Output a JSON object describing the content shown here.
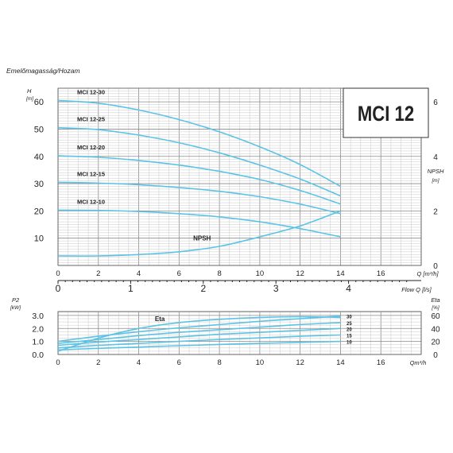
{
  "header": {
    "caption": "Emelőmagasság/Hozam"
  },
  "title_box": {
    "title": "MCI 12"
  },
  "colors": {
    "curve": "#5bc3e6",
    "grid_minor": "#c9c9c9",
    "grid_major": "#8a8a8a",
    "text": "#222222"
  },
  "chart_data": [
    {
      "id": "head",
      "type": "line",
      "x_label": "Q [m³/h]",
      "xlim": [
        0,
        18
      ],
      "x_ticks": [
        0,
        2,
        4,
        6,
        8,
        10,
        12,
        14,
        16
      ],
      "y_label": "H [m]",
      "ylim": [
        0,
        65
      ],
      "y_ticks": [
        10,
        20,
        30,
        40,
        50,
        60
      ],
      "y2_label": "NPSH [m]",
      "y2lim": [
        0,
        6.5
      ],
      "y2_ticks": [
        0,
        2,
        4,
        6
      ],
      "secondary_x_label": "Flow Q [l/s]",
      "secondary_x_ticks": [
        0,
        1,
        2,
        3,
        4
      ],
      "grid": true,
      "series": [
        {
          "name": "MCI 12-30",
          "x": [
            0,
            2,
            4,
            6,
            8,
            10,
            12,
            14
          ],
          "y": [
            60.5,
            59.5,
            57,
            53.5,
            49,
            43.5,
            37,
            29
          ]
        },
        {
          "name": "MCI 12-25",
          "x": [
            0,
            2,
            4,
            6,
            8,
            10,
            12,
            14
          ],
          "y": [
            50.5,
            49.8,
            47.8,
            45,
            41.3,
            36.8,
            31.7,
            25.5
          ]
        },
        {
          "name": "MCI 12-20",
          "x": [
            0,
            2,
            4,
            6,
            8,
            10,
            12,
            14
          ],
          "y": [
            40.2,
            39.7,
            38.5,
            36.8,
            34.5,
            31.5,
            27.5,
            22.5
          ]
        },
        {
          "name": "MCI 12-15",
          "x": [
            0,
            2,
            4,
            6,
            8,
            10,
            12,
            14
          ],
          "y": [
            30.5,
            30.2,
            29.6,
            28.6,
            27.2,
            25.2,
            22.5,
            19
          ]
        },
        {
          "name": "MCI 12-10",
          "x": [
            0,
            2,
            4,
            6,
            8,
            10,
            12,
            14
          ],
          "y": [
            20.3,
            20.2,
            19.8,
            19,
            17.8,
            16,
            13.5,
            10.5
          ]
        },
        {
          "name": "NPSH",
          "axis": "y2",
          "x": [
            0,
            2,
            4,
            6,
            8,
            10,
            12,
            14
          ],
          "y": [
            0.35,
            0.35,
            0.4,
            0.5,
            0.7,
            1.05,
            1.45,
            2.0
          ]
        }
      ]
    },
    {
      "id": "power_eta",
      "type": "line",
      "x_label": "Qm³/h",
      "xlim": [
        0,
        18
      ],
      "x_ticks": [
        0,
        2,
        4,
        6,
        8,
        10,
        12,
        14,
        16
      ],
      "y_label": "P2 [kW]",
      "ylim": [
        0,
        3.0
      ],
      "y_ticks": [
        0.0,
        1.0,
        2.0,
        3.0
      ],
      "y_tick_labels": [
        "0.0",
        "1.0",
        "2.0",
        "3.0"
      ],
      "y2_label": "Eta [%]",
      "y2lim": [
        0,
        60
      ],
      "y2_ticks": [
        0,
        20,
        40,
        60
      ],
      "grid": true,
      "series": [
        {
          "name": "30",
          "x": [
            0,
            2,
            4,
            6,
            8,
            10,
            12,
            14
          ],
          "y": [
            1.0,
            1.4,
            1.75,
            2.05,
            2.3,
            2.55,
            2.75,
            2.95
          ]
        },
        {
          "name": "25",
          "x": [
            0,
            2,
            4,
            6,
            8,
            10,
            12,
            14
          ],
          "y": [
            0.85,
            1.15,
            1.45,
            1.7,
            1.9,
            2.1,
            2.3,
            2.45
          ]
        },
        {
          "name": "20",
          "x": [
            0,
            2,
            4,
            6,
            8,
            10,
            12,
            14
          ],
          "y": [
            0.7,
            0.95,
            1.15,
            1.35,
            1.55,
            1.7,
            1.85,
            2.0
          ]
        },
        {
          "name": "15",
          "x": [
            0,
            2,
            4,
            6,
            8,
            10,
            12,
            14
          ],
          "y": [
            0.5,
            0.7,
            0.85,
            1.0,
            1.15,
            1.27,
            1.4,
            1.5
          ]
        },
        {
          "name": "10",
          "x": [
            0,
            2,
            4,
            6,
            8,
            10,
            12,
            14
          ],
          "y": [
            0.35,
            0.47,
            0.57,
            0.67,
            0.77,
            0.85,
            0.93,
            1.0
          ]
        },
        {
          "name": "Eta",
          "axis": "y2",
          "x": [
            0,
            2,
            4,
            6,
            8,
            10,
            12,
            14
          ],
          "y": [
            5,
            25,
            40,
            49,
            54,
            57,
            58,
            57
          ]
        }
      ]
    }
  ]
}
